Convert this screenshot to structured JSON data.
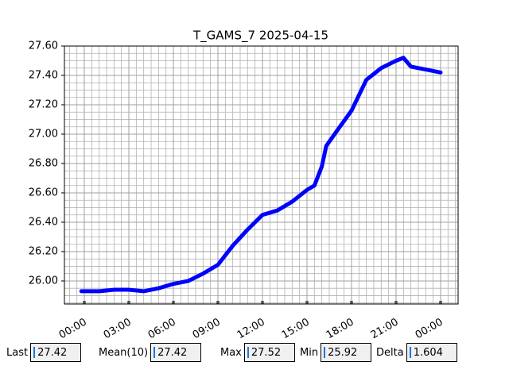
{
  "chart_data": {
    "type": "line",
    "title": "T_GAMS_7 2025-04-15",
    "x": [
      -0.2,
      1,
      2,
      3,
      4,
      5,
      6,
      7,
      8,
      9,
      10,
      11,
      12,
      13,
      14,
      15,
      15.5,
      16,
      16.3,
      17,
      18,
      19,
      20,
      21,
      21.5,
      22,
      23,
      24
    ],
    "series": [
      {
        "color": "#0000ff",
        "values": [
          25.93,
          25.93,
          25.94,
          25.94,
          25.93,
          25.95,
          25.98,
          26.0,
          26.05,
          26.11,
          26.24,
          26.35,
          26.45,
          26.48,
          26.54,
          26.62,
          26.65,
          26.78,
          26.92,
          27.02,
          27.16,
          27.37,
          27.45,
          27.5,
          27.52,
          27.46,
          27.44,
          27.42
        ]
      }
    ],
    "xlim": [
      -1.34,
      25.18
    ],
    "ylim": [
      25.843,
      27.6
    ],
    "xticks": [
      {
        "value": 0,
        "label": "00:00"
      },
      {
        "value": 3,
        "label": "03:00"
      },
      {
        "value": 6,
        "label": "06:00"
      },
      {
        "value": 9,
        "label": "09:00"
      },
      {
        "value": 12,
        "label": "12:00"
      },
      {
        "value": 15,
        "label": "15:00"
      },
      {
        "value": 18,
        "label": "18:00"
      },
      {
        "value": 21,
        "label": "21:00"
      },
      {
        "value": 24,
        "label": "00:00"
      }
    ],
    "yticks": [
      {
        "value": 26,
        "label": "26.00"
      },
      {
        "value": 26.2,
        "label": "26.20"
      },
      {
        "value": 26.4,
        "label": "26.40"
      },
      {
        "value": 26.6,
        "label": "26.60"
      },
      {
        "value": 26.8,
        "label": "26.80"
      },
      {
        "value": 27,
        "label": "27.00"
      },
      {
        "value": 27.2,
        "label": "27.20"
      },
      {
        "value": 27.4,
        "label": "27.40"
      },
      {
        "value": 27.6,
        "label": "27.60"
      }
    ],
    "grid": true
  },
  "stats": [
    {
      "label": "Last",
      "value": "27.42"
    },
    {
      "label": "Mean(10)",
      "value": "27.42"
    },
    {
      "label": "Max",
      "value": "27.52"
    },
    {
      "label": "Min",
      "value": "25.92"
    },
    {
      "label": "Delta",
      "value": "1.604"
    }
  ]
}
